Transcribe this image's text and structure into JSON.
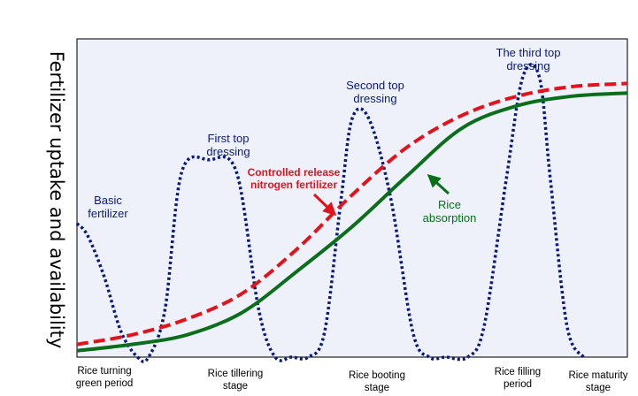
{
  "chart_data": {
    "type": "line",
    "ylabel": "Fertilizer uptake and availability",
    "xlabel": "",
    "x_ticks": [
      {
        "lines": [
          "Rice turning",
          "green period"
        ]
      },
      {
        "lines": [
          "Rice tillering",
          "stage"
        ]
      },
      {
        "lines": [
          "Rice booting",
          "stage"
        ]
      },
      {
        "lines": [
          "Rice filling",
          "period"
        ]
      },
      {
        "lines": [
          "Rice maturity",
          "stage"
        ]
      }
    ],
    "xlim": [
      0,
      100
    ],
    "ylim": [
      0,
      100
    ],
    "grid": false,
    "background": "#eef1fa",
    "series": [
      {
        "key": "controlled",
        "color": "#e0141c",
        "style": "dashed",
        "x": [
          0,
          10,
          20,
          30,
          40,
          50,
          60,
          70,
          80,
          90,
          100
        ],
        "y": [
          4,
          7,
          12,
          20,
          34,
          51,
          66,
          76,
          82,
          85,
          86
        ]
      },
      {
        "key": "rice",
        "color": "#0a6e1a",
        "style": "solid",
        "x": [
          0,
          10,
          20,
          30,
          40,
          50,
          60,
          70,
          80,
          90,
          100
        ],
        "y": [
          2,
          4,
          7,
          14,
          27,
          41,
          57,
          72,
          79,
          82,
          83
        ]
      },
      {
        "key": "pulses",
        "color": "#0a1a7a",
        "style": "dotted",
        "x": [
          0,
          2,
          5,
          8,
          11,
          13,
          16,
          19,
          24,
          29,
          33,
          36,
          39,
          42,
          45,
          48,
          50,
          53,
          57,
          61,
          64,
          67,
          71,
          74,
          78,
          81,
          84,
          86,
          89,
          92
        ],
        "y": [
          42,
          38,
          25,
          8,
          0,
          0,
          15,
          58,
          62,
          58,
          15,
          0,
          0,
          0,
          8,
          50,
          75,
          75,
          50,
          8,
          0,
          0,
          0,
          10,
          56,
          88,
          88,
          56,
          10,
          0
        ]
      }
    ],
    "annotations": [
      {
        "key": "basic",
        "lines": [
          "Basic",
          "fertilizer"
        ]
      },
      {
        "key": "first",
        "lines": [
          "First top",
          "dressing"
        ]
      },
      {
        "key": "second",
        "lines": [
          "Second top",
          "dressing"
        ]
      },
      {
        "key": "third",
        "lines": [
          "The third top",
          "dressing"
        ]
      },
      {
        "key": "controlled",
        "lines": [
          "Controlled release",
          "nitrogen fertilizer"
        ]
      },
      {
        "key": "rice",
        "lines": [
          "Rice",
          "absorption"
        ]
      }
    ]
  }
}
